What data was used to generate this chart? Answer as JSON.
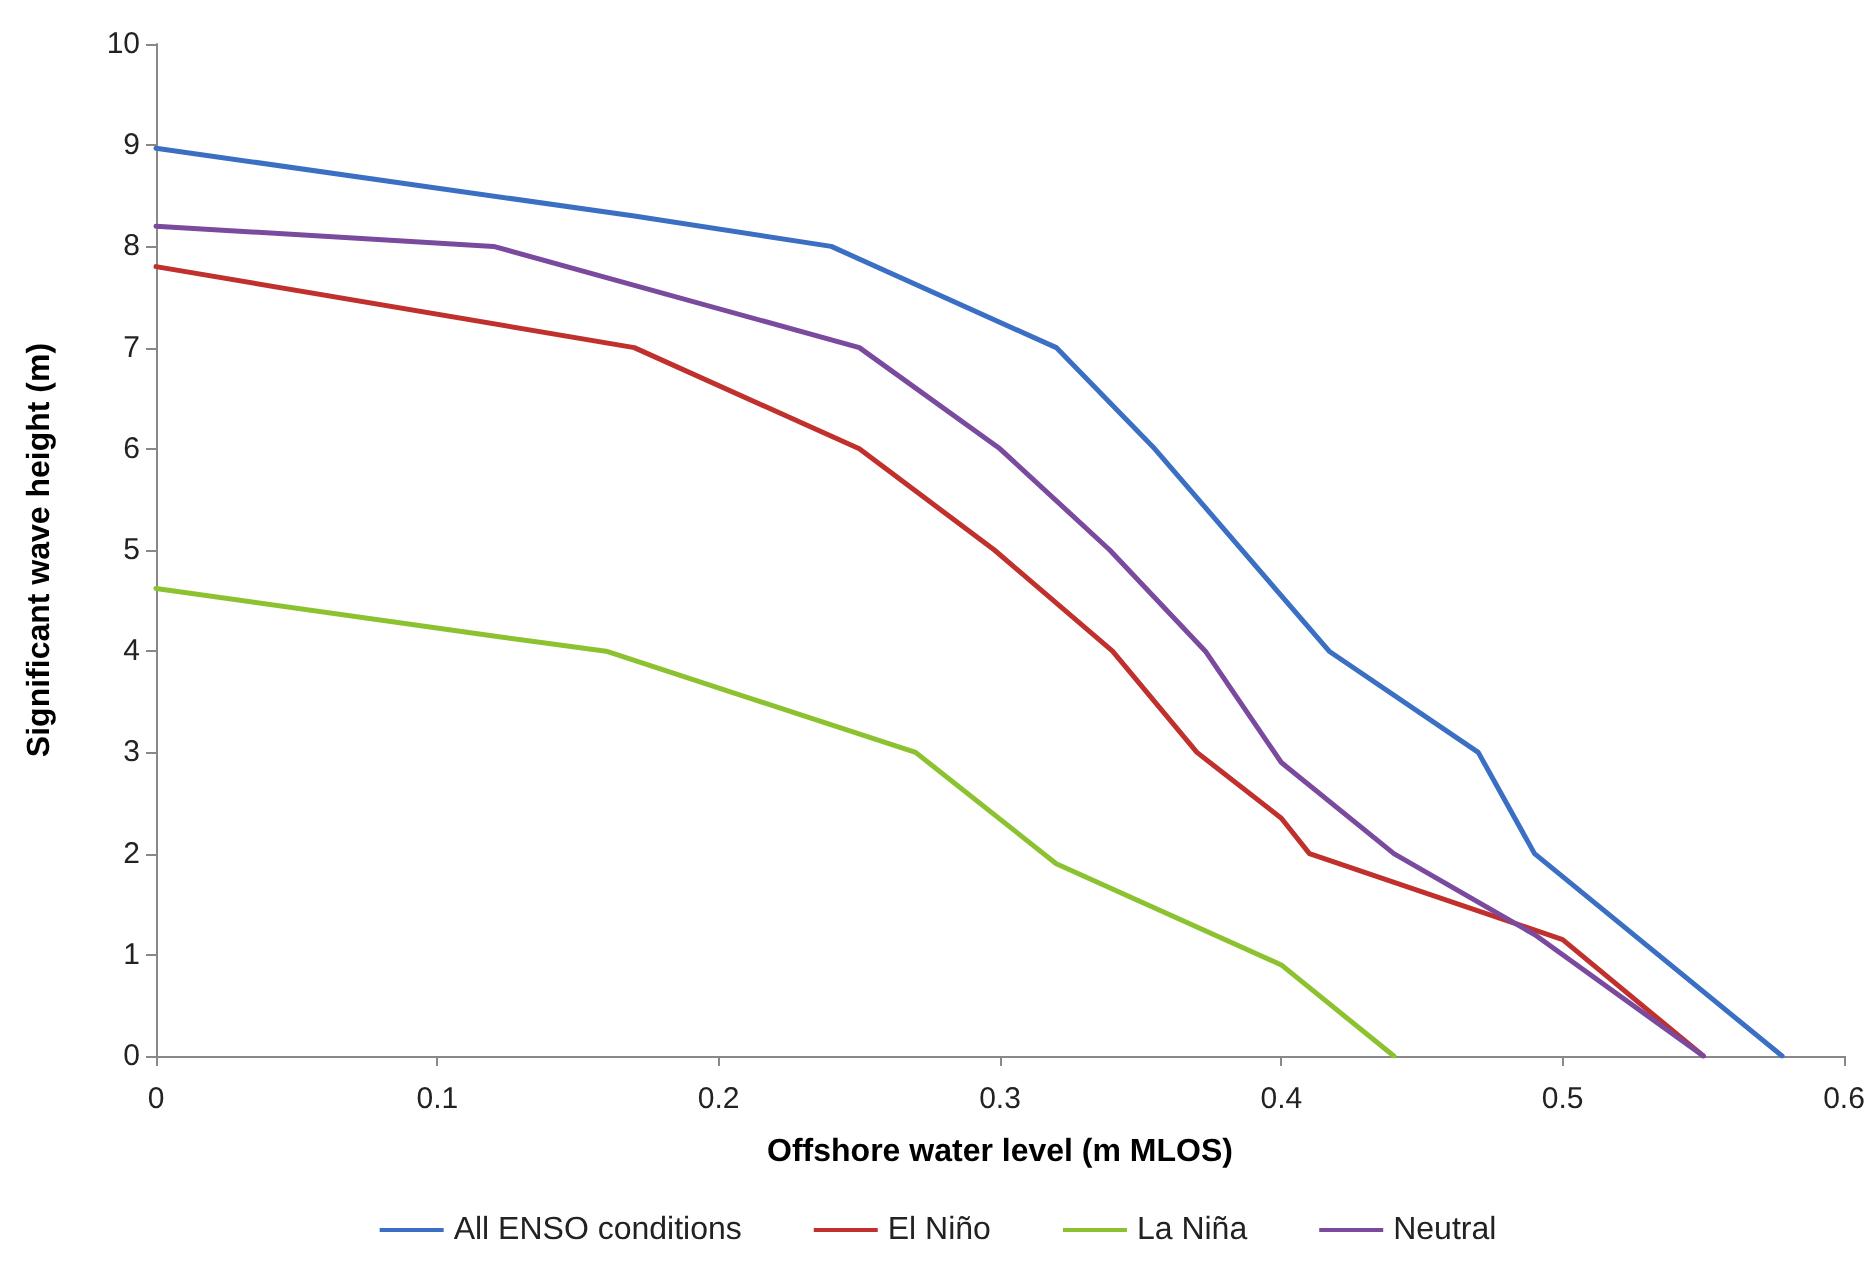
{
  "chart_data": {
    "type": "line",
    "xlabel": "Offshore water level (m MLOS)",
    "ylabel": "Significant wave height (m)",
    "xlim": [
      0,
      0.6
    ],
    "xticks": [
      0,
      0.1,
      0.2,
      0.3,
      0.4,
      0.5,
      0.6
    ],
    "ylim": [
      0,
      10
    ],
    "yticks": [
      0,
      1,
      2,
      3,
      4,
      5,
      6,
      7,
      8,
      9,
      10
    ],
    "grid": false,
    "legend": "bottom",
    "marker": "none",
    "line_style": "solid",
    "series": [
      {
        "name": "All ENSO conditions",
        "color": "#3a6fc4",
        "x": [
          0,
          0.17,
          0.24,
          0.32,
          0.355,
          0.417,
          0.47,
          0.49,
          0.578
        ],
        "values": [
          8.97,
          8.3,
          8.0,
          7.0,
          6.0,
          4.0,
          3.0,
          2.0,
          0
        ]
      },
      {
        "name": "El Niño",
        "color": "#c0302c",
        "x": [
          0,
          0.17,
          0.25,
          0.298,
          0.34,
          0.37,
          0.4,
          0.41,
          0.5,
          0.55
        ],
        "values": [
          7.8,
          7.0,
          6.0,
          5.0,
          4.0,
          3.0,
          2.35,
          2.0,
          1.15,
          0
        ]
      },
      {
        "name": "La Niña",
        "color": "#8cc230",
        "x": [
          0,
          0.12,
          0.16,
          0.27,
          0.32,
          0.4,
          0.44
        ],
        "values": [
          4.62,
          4.15,
          4.0,
          3.0,
          1.9,
          0.9,
          0
        ]
      },
      {
        "name": "Neutral",
        "color": "#7a4a9e",
        "x": [
          0,
          0.12,
          0.25,
          0.3,
          0.339,
          0.373,
          0.4,
          0.44,
          0.49,
          0.55
        ],
        "values": [
          8.2,
          8.0,
          7.0,
          6.0,
          5.0,
          4.0,
          2.9,
          2.0,
          1.2,
          0
        ]
      }
    ]
  }
}
